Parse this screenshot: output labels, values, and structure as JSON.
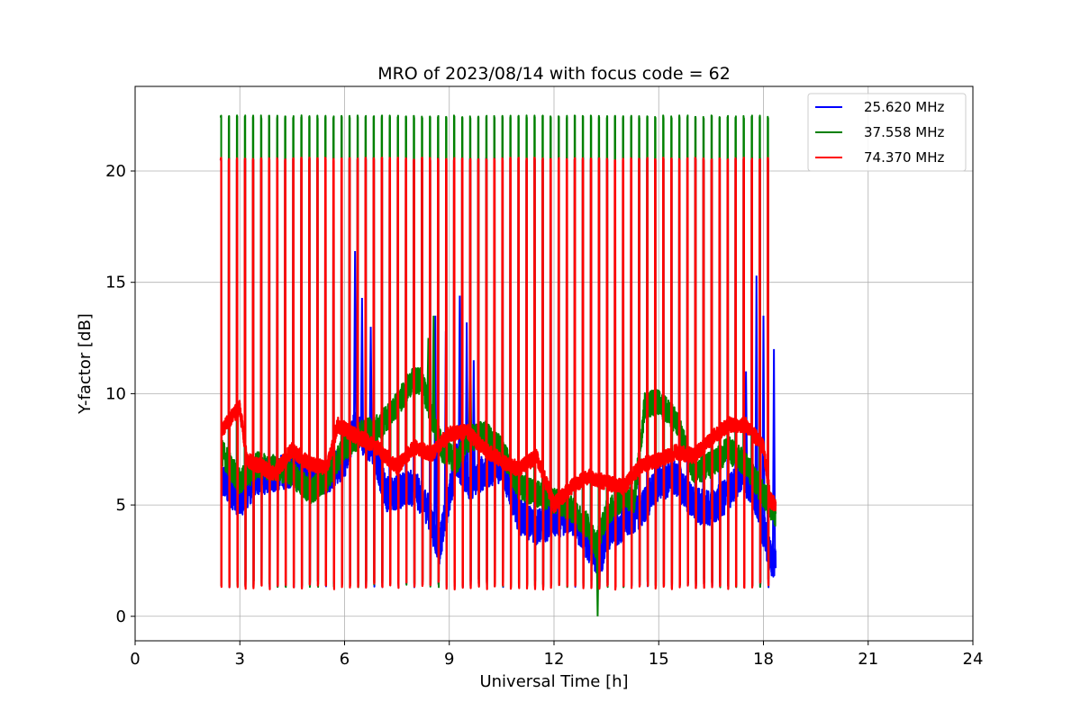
{
  "chart_data": {
    "type": "line",
    "title": "MRO of 2023/08/14 with focus code = 62",
    "xlabel": "Universal Time [h]",
    "ylabel": "Y-factor [dB]",
    "xlim": [
      0,
      24
    ],
    "ylim": [
      -1.1,
      23.8
    ],
    "xticks": [
      0,
      3,
      6,
      9,
      12,
      15,
      18,
      21,
      24
    ],
    "yticks": [
      0,
      5,
      10,
      15,
      20
    ],
    "grid": true,
    "legend_position": "top-right",
    "data_start_hour": 2.45,
    "data_end_hour": 18.35,
    "pulse_count": 69,
    "series": [
      {
        "name": "25.620 MHz",
        "color": "#0000ff",
        "pulse_high": 20.6,
        "pulse_low": 1.3,
        "baseline": [
          {
            "x": 2.45,
            "y": 6.2
          },
          {
            "x": 3.0,
            "y": 5.2
          },
          {
            "x": 3.5,
            "y": 6.2
          },
          {
            "x": 4.0,
            "y": 6.4
          },
          {
            "x": 4.5,
            "y": 6.6
          },
          {
            "x": 5.0,
            "y": 6.2
          },
          {
            "x": 5.5,
            "y": 6.3
          },
          {
            "x": 6.0,
            "y": 7.0
          },
          {
            "x": 6.3,
            "y": 8.5
          },
          {
            "x": 6.8,
            "y": 7.5
          },
          {
            "x": 7.2,
            "y": 5.5
          },
          {
            "x": 7.6,
            "y": 5.6
          },
          {
            "x": 8.0,
            "y": 5.8
          },
          {
            "x": 8.4,
            "y": 4.8
          },
          {
            "x": 8.7,
            "y": 3.0
          },
          {
            "x": 9.2,
            "y": 7.0
          },
          {
            "x": 9.6,
            "y": 6.0
          },
          {
            "x": 10.0,
            "y": 6.5
          },
          {
            "x": 10.5,
            "y": 6.8
          },
          {
            "x": 11.0,
            "y": 4.5
          },
          {
            "x": 11.5,
            "y": 4.0
          },
          {
            "x": 12.0,
            "y": 4.3
          },
          {
            "x": 12.5,
            "y": 4.5
          },
          {
            "x": 13.0,
            "y": 3.2
          },
          {
            "x": 13.3,
            "y": 2.5
          },
          {
            "x": 13.6,
            "y": 3.8
          },
          {
            "x": 14.0,
            "y": 4.2
          },
          {
            "x": 14.5,
            "y": 4.8
          },
          {
            "x": 15.0,
            "y": 6.0
          },
          {
            "x": 15.5,
            "y": 6.2
          },
          {
            "x": 16.0,
            "y": 5.0
          },
          {
            "x": 16.5,
            "y": 4.8
          },
          {
            "x": 17.0,
            "y": 5.5
          },
          {
            "x": 17.4,
            "y": 6.5
          },
          {
            "x": 17.8,
            "y": 5.2
          },
          {
            "x": 18.2,
            "y": 2.6
          },
          {
            "x": 18.35,
            "y": 2.5
          }
        ],
        "spikes": [
          {
            "x": 6.3,
            "y": 16.4
          },
          {
            "x": 6.5,
            "y": 14.3
          },
          {
            "x": 6.75,
            "y": 13.0
          },
          {
            "x": 8.6,
            "y": 13.5
          },
          {
            "x": 8.9,
            "y": 12.8
          },
          {
            "x": 9.3,
            "y": 14.4
          },
          {
            "x": 9.5,
            "y": 13.2
          },
          {
            "x": 9.7,
            "y": 11.5
          },
          {
            "x": 17.5,
            "y": 11.0
          },
          {
            "x": 17.8,
            "y": 15.3
          },
          {
            "x": 18.0,
            "y": 13.5
          },
          {
            "x": 18.3,
            "y": 12.0
          }
        ]
      },
      {
        "name": "37.558 MHz",
        "color": "#008000",
        "pulse_high": 22.5,
        "pulse_low": 1.3,
        "baseline": [
          {
            "x": 2.45,
            "y": 7.5
          },
          {
            "x": 3.0,
            "y": 6.0
          },
          {
            "x": 3.5,
            "y": 6.8
          },
          {
            "x": 4.0,
            "y": 6.7
          },
          {
            "x": 4.5,
            "y": 6.4
          },
          {
            "x": 5.0,
            "y": 5.6
          },
          {
            "x": 5.5,
            "y": 6.2
          },
          {
            "x": 6.0,
            "y": 7.6
          },
          {
            "x": 6.5,
            "y": 8.2
          },
          {
            "x": 7.0,
            "y": 8.5
          },
          {
            "x": 7.5,
            "y": 9.5
          },
          {
            "x": 7.9,
            "y": 10.5
          },
          {
            "x": 8.2,
            "y": 10.6
          },
          {
            "x": 8.5,
            "y": 9.0
          },
          {
            "x": 8.8,
            "y": 7.5
          },
          {
            "x": 9.2,
            "y": 7.0
          },
          {
            "x": 9.6,
            "y": 8.0
          },
          {
            "x": 10.0,
            "y": 8.2
          },
          {
            "x": 10.5,
            "y": 7.5
          },
          {
            "x": 11.0,
            "y": 5.8
          },
          {
            "x": 11.5,
            "y": 5.5
          },
          {
            "x": 12.0,
            "y": 5.2
          },
          {
            "x": 12.5,
            "y": 4.8
          },
          {
            "x": 13.0,
            "y": 4.0
          },
          {
            "x": 13.2,
            "y": 3.2
          },
          {
            "x": 13.5,
            "y": 4.6
          },
          {
            "x": 14.0,
            "y": 5.4
          },
          {
            "x": 14.3,
            "y": 5.2
          },
          {
            "x": 14.6,
            "y": 9.5
          },
          {
            "x": 15.0,
            "y": 9.6
          },
          {
            "x": 15.5,
            "y": 8.8
          },
          {
            "x": 16.0,
            "y": 6.5
          },
          {
            "x": 16.5,
            "y": 6.8
          },
          {
            "x": 17.0,
            "y": 7.5
          },
          {
            "x": 17.5,
            "y": 6.8
          },
          {
            "x": 18.0,
            "y": 5.5
          },
          {
            "x": 18.35,
            "y": 4.6
          }
        ],
        "spikes": [
          {
            "x": 8.4,
            "y": 12.5
          },
          {
            "x": 8.55,
            "y": 13.5
          },
          {
            "x": 9.6,
            "y": 13.0
          },
          {
            "x": 13.25,
            "y": 0.0
          }
        ]
      },
      {
        "name": "74.370 MHz",
        "color": "#ff0000",
        "pulse_high": 20.6,
        "pulse_low": 1.2,
        "baseline": [
          {
            "x": 2.45,
            "y": 8.3
          },
          {
            "x": 2.7,
            "y": 8.8
          },
          {
            "x": 3.0,
            "y": 9.4
          },
          {
            "x": 3.2,
            "y": 7.0
          },
          {
            "x": 3.5,
            "y": 6.8
          },
          {
            "x": 4.0,
            "y": 6.4
          },
          {
            "x": 4.5,
            "y": 7.5
          },
          {
            "x": 5.0,
            "y": 6.8
          },
          {
            "x": 5.5,
            "y": 6.7
          },
          {
            "x": 5.8,
            "y": 8.6
          },
          {
            "x": 6.2,
            "y": 8.2
          },
          {
            "x": 6.6,
            "y": 7.9
          },
          {
            "x": 7.0,
            "y": 7.5
          },
          {
            "x": 7.5,
            "y": 6.7
          },
          {
            "x": 8.0,
            "y": 7.6
          },
          {
            "x": 8.5,
            "y": 7.3
          },
          {
            "x": 9.0,
            "y": 8.2
          },
          {
            "x": 9.5,
            "y": 8.3
          },
          {
            "x": 10.0,
            "y": 7.5
          },
          {
            "x": 10.5,
            "y": 7.0
          },
          {
            "x": 11.0,
            "y": 6.6
          },
          {
            "x": 11.5,
            "y": 7.2
          },
          {
            "x": 12.0,
            "y": 5.0
          },
          {
            "x": 12.5,
            "y": 5.8
          },
          {
            "x": 13.0,
            "y": 6.3
          },
          {
            "x": 13.5,
            "y": 6.0
          },
          {
            "x": 14.0,
            "y": 5.8
          },
          {
            "x": 14.5,
            "y": 6.8
          },
          {
            "x": 15.0,
            "y": 7.0
          },
          {
            "x": 15.5,
            "y": 7.4
          },
          {
            "x": 16.0,
            "y": 7.2
          },
          {
            "x": 16.5,
            "y": 8.0
          },
          {
            "x": 17.0,
            "y": 8.6
          },
          {
            "x": 17.5,
            "y": 8.6
          },
          {
            "x": 18.0,
            "y": 7.6
          },
          {
            "x": 18.2,
            "y": 5.2
          },
          {
            "x": 18.35,
            "y": 5.0
          }
        ],
        "spikes": []
      }
    ]
  }
}
